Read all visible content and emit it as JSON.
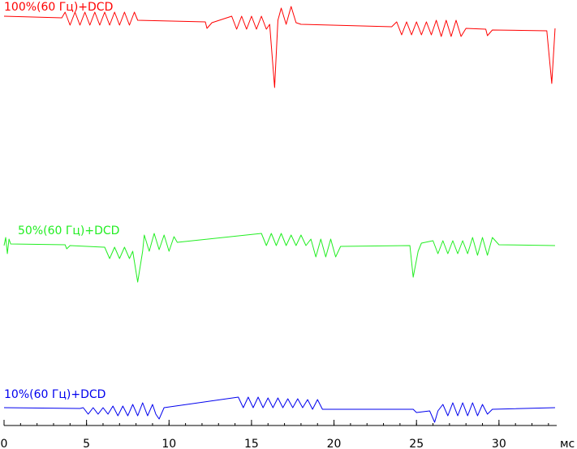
{
  "chart_data": {
    "type": "line",
    "x_label": "мс",
    "xlim": [
      0,
      33.5
    ],
    "ylim": [
      0,
      525
    ],
    "xticks": [
      0,
      5,
      10,
      15,
      20,
      25,
      30
    ],
    "xminorticks": [
      0,
      1,
      2,
      3,
      4,
      5,
      6,
      7,
      8,
      9,
      10,
      11,
      12,
      13,
      14,
      15,
      16,
      17,
      18,
      19,
      20,
      21,
      22,
      23,
      24,
      25,
      26,
      27,
      28,
      29,
      30,
      31,
      32,
      33
    ],
    "series": [
      {
        "name": "100%(60 Гц)+DCD",
        "color": "#ff0000",
        "x": [
          0,
          3.5,
          3.7,
          4.0,
          4.3,
          4.6,
          4.9,
          5.2,
          5.5,
          5.8,
          6.1,
          6.4,
          6.7,
          7.0,
          7.3,
          7.6,
          7.9,
          8.1,
          12.2,
          12.3,
          12.6,
          13.8,
          14.1,
          14.4,
          14.7,
          15.0,
          15.3,
          15.6,
          15.9,
          16.1,
          16.4,
          16.6,
          16.8,
          17.1,
          17.4,
          17.7,
          18.0,
          23.5,
          23.8,
          24.1,
          24.4,
          24.7,
          25.0,
          25.3,
          25.6,
          25.9,
          26.2,
          26.5,
          26.8,
          27.1,
          27.4,
          27.7,
          28.0,
          29.2,
          29.3,
          29.6,
          32.9,
          33.2,
          33.4
        ],
        "values": [
          505,
          503,
          510,
          494,
          510,
          494,
          510,
          494,
          510,
          494,
          510,
          494,
          510,
          494,
          510,
          494,
          510,
          500,
          498,
          490,
          497,
          505,
          489,
          505,
          489,
          505,
          489,
          505,
          489,
          495,
          417,
          500,
          515,
          495,
          517,
          497,
          495,
          492,
          498,
          482,
          498,
          482,
          498,
          482,
          498,
          482,
          500,
          480,
          500,
          480,
          500,
          480,
          490,
          489,
          481,
          488,
          487,
          422,
          490
        ]
      },
      {
        "name": "50%(60 Гц)+DCD",
        "color": "#22ee22",
        "x": [
          0,
          0.1,
          0.2,
          0.3,
          0.4,
          3.7,
          3.8,
          4.0,
          6.1,
          6.4,
          6.7,
          7.0,
          7.3,
          7.6,
          7.8,
          8.1,
          8.4,
          8.5,
          8.8,
          9.1,
          9.4,
          9.7,
          10.0,
          10.3,
          10.5,
          15.6,
          15.9,
          16.2,
          16.5,
          16.8,
          17.1,
          17.4,
          17.7,
          18.0,
          18.3,
          18.6,
          18.9,
          19.2,
          19.5,
          19.8,
          20.1,
          20.4,
          24.6,
          24.8,
          25.1,
          25.3,
          26.0,
          26.3,
          26.6,
          26.9,
          27.2,
          27.5,
          27.8,
          28.1,
          28.4,
          28.7,
          29.0,
          29.3,
          29.6,
          30.0,
          33.4
        ],
        "values": [
          222,
          232,
          212,
          230,
          224,
          223,
          218,
          222,
          220,
          206,
          220,
          206,
          220,
          206,
          215,
          177,
          215,
          235,
          215,
          237,
          217,
          235,
          215,
          233,
          226,
          237,
          222,
          237,
          222,
          237,
          222,
          235,
          222,
          235,
          222,
          230,
          208,
          230,
          208,
          230,
          208,
          221,
          222,
          183,
          215,
          225,
          228,
          212,
          228,
          212,
          228,
          212,
          228,
          212,
          232,
          210,
          232,
          210,
          232,
          223,
          222
        ]
      },
      {
        "name": "10%(60 Гц)+DCD",
        "color": "#0000ee",
        "x": [
          0,
          4.6,
          4.8,
          5.1,
          5.4,
          5.7,
          6.0,
          6.3,
          6.6,
          6.9,
          7.2,
          7.5,
          7.8,
          8.1,
          8.4,
          8.7,
          9.0,
          9.2,
          9.4,
          9.7,
          14.2,
          14.5,
          14.8,
          15.1,
          15.4,
          15.7,
          16.0,
          16.3,
          16.6,
          16.9,
          17.2,
          17.5,
          17.8,
          18.1,
          18.4,
          18.7,
          19.0,
          19.3,
          19.5,
          24.8,
          25.0,
          25.8,
          26.1,
          26.3,
          26.6,
          26.9,
          27.2,
          27.5,
          27.8,
          28.1,
          28.4,
          28.7,
          29.0,
          29.3,
          29.6,
          33.4
        ],
        "values": [
          22,
          21,
          22,
          14,
          22,
          14,
          22,
          14,
          24,
          12,
          24,
          12,
          26,
          12,
          28,
          12,
          26,
          14,
          8,
          22,
          35,
          22,
          35,
          22,
          35,
          22,
          34,
          22,
          34,
          22,
          33,
          22,
          33,
          22,
          32,
          20,
          32,
          20,
          20,
          20,
          16,
          18,
          4,
          18,
          26,
          12,
          28,
          12,
          28,
          12,
          28,
          12,
          26,
          14,
          20,
          22
        ]
      }
    ]
  }
}
